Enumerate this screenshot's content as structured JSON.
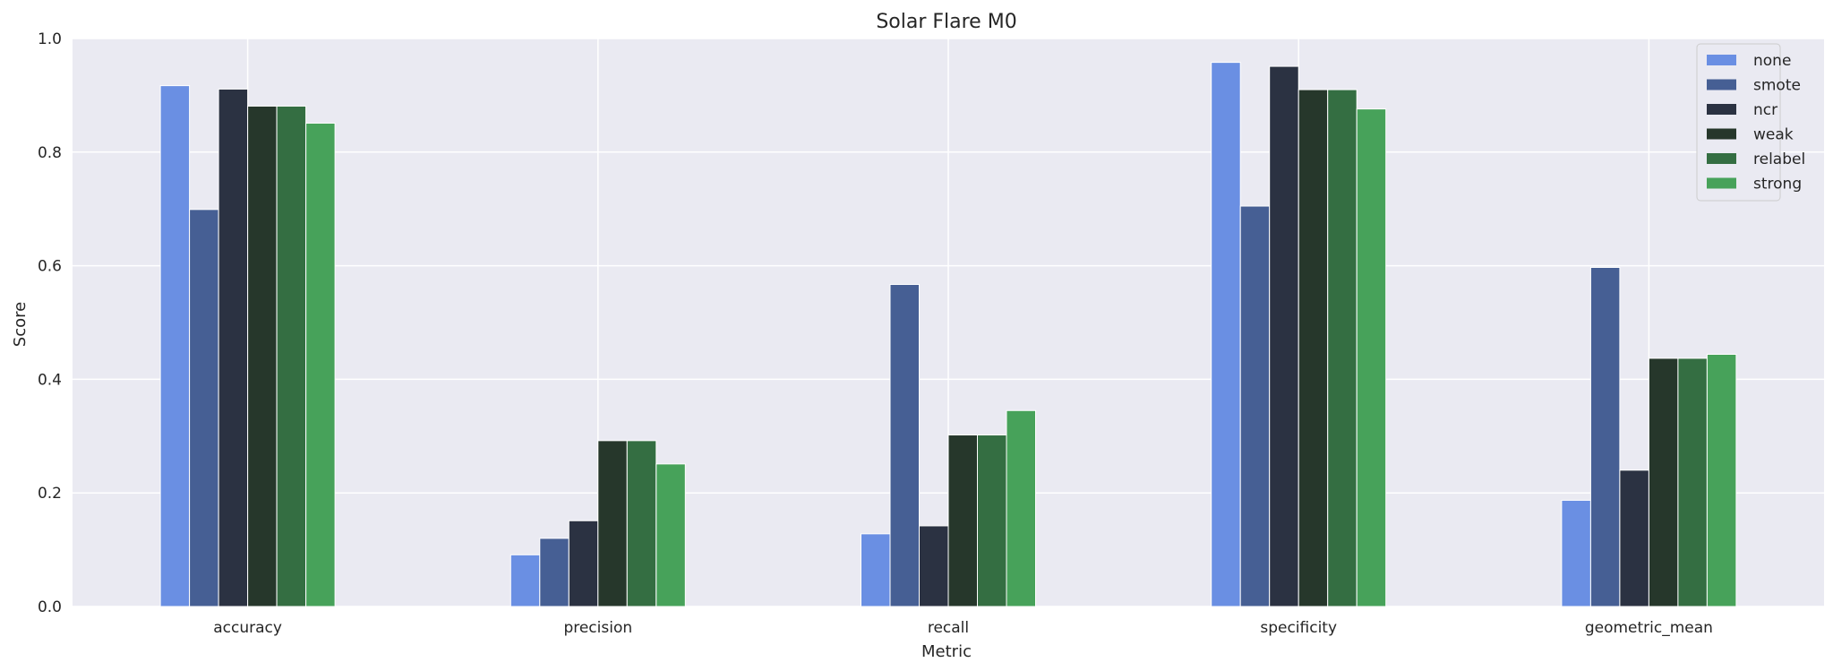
{
  "chart_data": {
    "type": "bar",
    "title": "Solar Flare M0",
    "xlabel": "Metric",
    "ylabel": "Score",
    "ylim": [
      0,
      1.0
    ],
    "yticks": [
      "0.0",
      "0.2",
      "0.4",
      "0.6",
      "0.8",
      "1.0"
    ],
    "grid": true,
    "legend_position": "top-right",
    "categories": [
      "accuracy",
      "precision",
      "recall",
      "specificity",
      "geometric_mean"
    ],
    "series": [
      {
        "name": "none",
        "color": "#6a8fe3",
        "values": [
          0.917,
          0.091,
          0.128,
          0.958,
          0.187
        ]
      },
      {
        "name": "smote",
        "color": "#465f94",
        "values": [
          0.699,
          0.12,
          0.567,
          0.705,
          0.597
        ]
      },
      {
        "name": "ncr",
        "color": "#2b3242",
        "values": [
          0.911,
          0.151,
          0.142,
          0.951,
          0.24
        ]
      },
      {
        "name": "weak",
        "color": "#26372b",
        "values": [
          0.881,
          0.292,
          0.302,
          0.91,
          0.437
        ]
      },
      {
        "name": "relabel",
        "color": "#346e42",
        "values": [
          0.881,
          0.292,
          0.302,
          0.91,
          0.437
        ]
      },
      {
        "name": "strong",
        "color": "#47a25a",
        "values": [
          0.851,
          0.251,
          0.345,
          0.876,
          0.444
        ]
      }
    ]
  }
}
